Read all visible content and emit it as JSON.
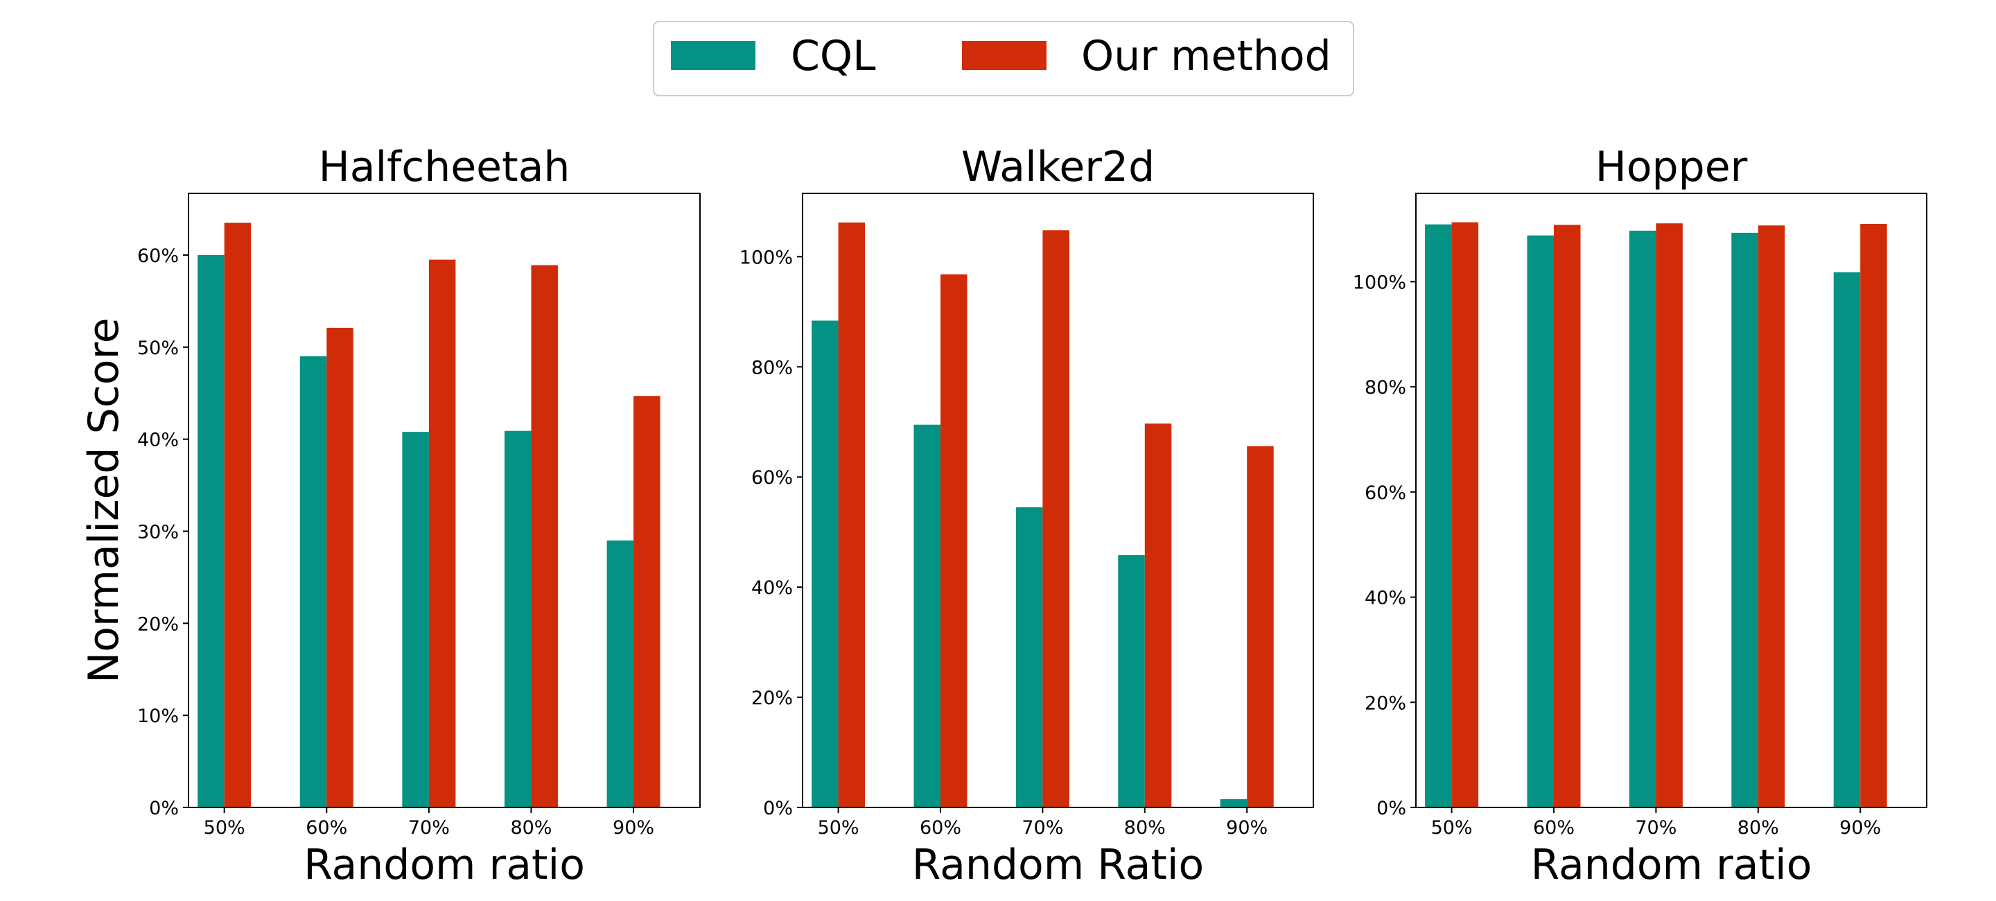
{
  "chart_data": {
    "type": "bar",
    "legend": {
      "placement": "top-center",
      "entries": [
        {
          "name": "CQL",
          "color": "#039283"
        },
        {
          "name": "Our method",
          "color": "#d12c0a"
        }
      ]
    },
    "ylabel": "Normalized Score",
    "panels": [
      {
        "title": "Halfcheetah",
        "xlabel": "Random ratio",
        "categories": [
          "50%",
          "60%",
          "70%",
          "80%",
          "90%"
        ],
        "ylim": [
          0,
          66.7
        ],
        "yticks": [
          0,
          10,
          20,
          30,
          40,
          50,
          60
        ],
        "ytick_labels": [
          "0%",
          "10%",
          "20%",
          "30%",
          "40%",
          "50%",
          "60%"
        ],
        "series": [
          {
            "name": "CQL",
            "values": [
              60.0,
              49.0,
              40.8,
              40.9,
              29.0
            ]
          },
          {
            "name": "Our method",
            "values": [
              63.5,
              52.1,
              59.5,
              58.9,
              44.7
            ]
          }
        ]
      },
      {
        "title": "Walker2d",
        "xlabel": "Random Ratio",
        "categories": [
          "50%",
          "60%",
          "70%",
          "80%",
          "90%"
        ],
        "ylim": [
          0,
          111.5
        ],
        "yticks": [
          0,
          20,
          40,
          60,
          80,
          100
        ],
        "ytick_labels": [
          "0%",
          "20%",
          "40%",
          "60%",
          "80%",
          "100%"
        ],
        "series": [
          {
            "name": "CQL",
            "values": [
              88.4,
              69.5,
              54.5,
              45.8,
              1.5
            ]
          },
          {
            "name": "Our method",
            "values": [
              106.2,
              96.8,
              104.8,
              69.7,
              65.6
            ]
          }
        ]
      },
      {
        "title": "Hopper",
        "xlabel": "Random ratio",
        "categories": [
          "50%",
          "60%",
          "70%",
          "80%",
          "90%"
        ],
        "ylim": [
          0,
          116.8
        ],
        "yticks": [
          0,
          20,
          40,
          60,
          80,
          100
        ],
        "ytick_labels": [
          "0%",
          "20%",
          "40%",
          "60%",
          "80%",
          "100%"
        ],
        "series": [
          {
            "name": "CQL",
            "values": [
              110.9,
              108.8,
              109.7,
              109.3,
              101.8
            ]
          },
          {
            "name": "Our method",
            "values": [
              111.3,
              110.8,
              111.1,
              110.7,
              111.0
            ]
          }
        ]
      }
    ]
  }
}
